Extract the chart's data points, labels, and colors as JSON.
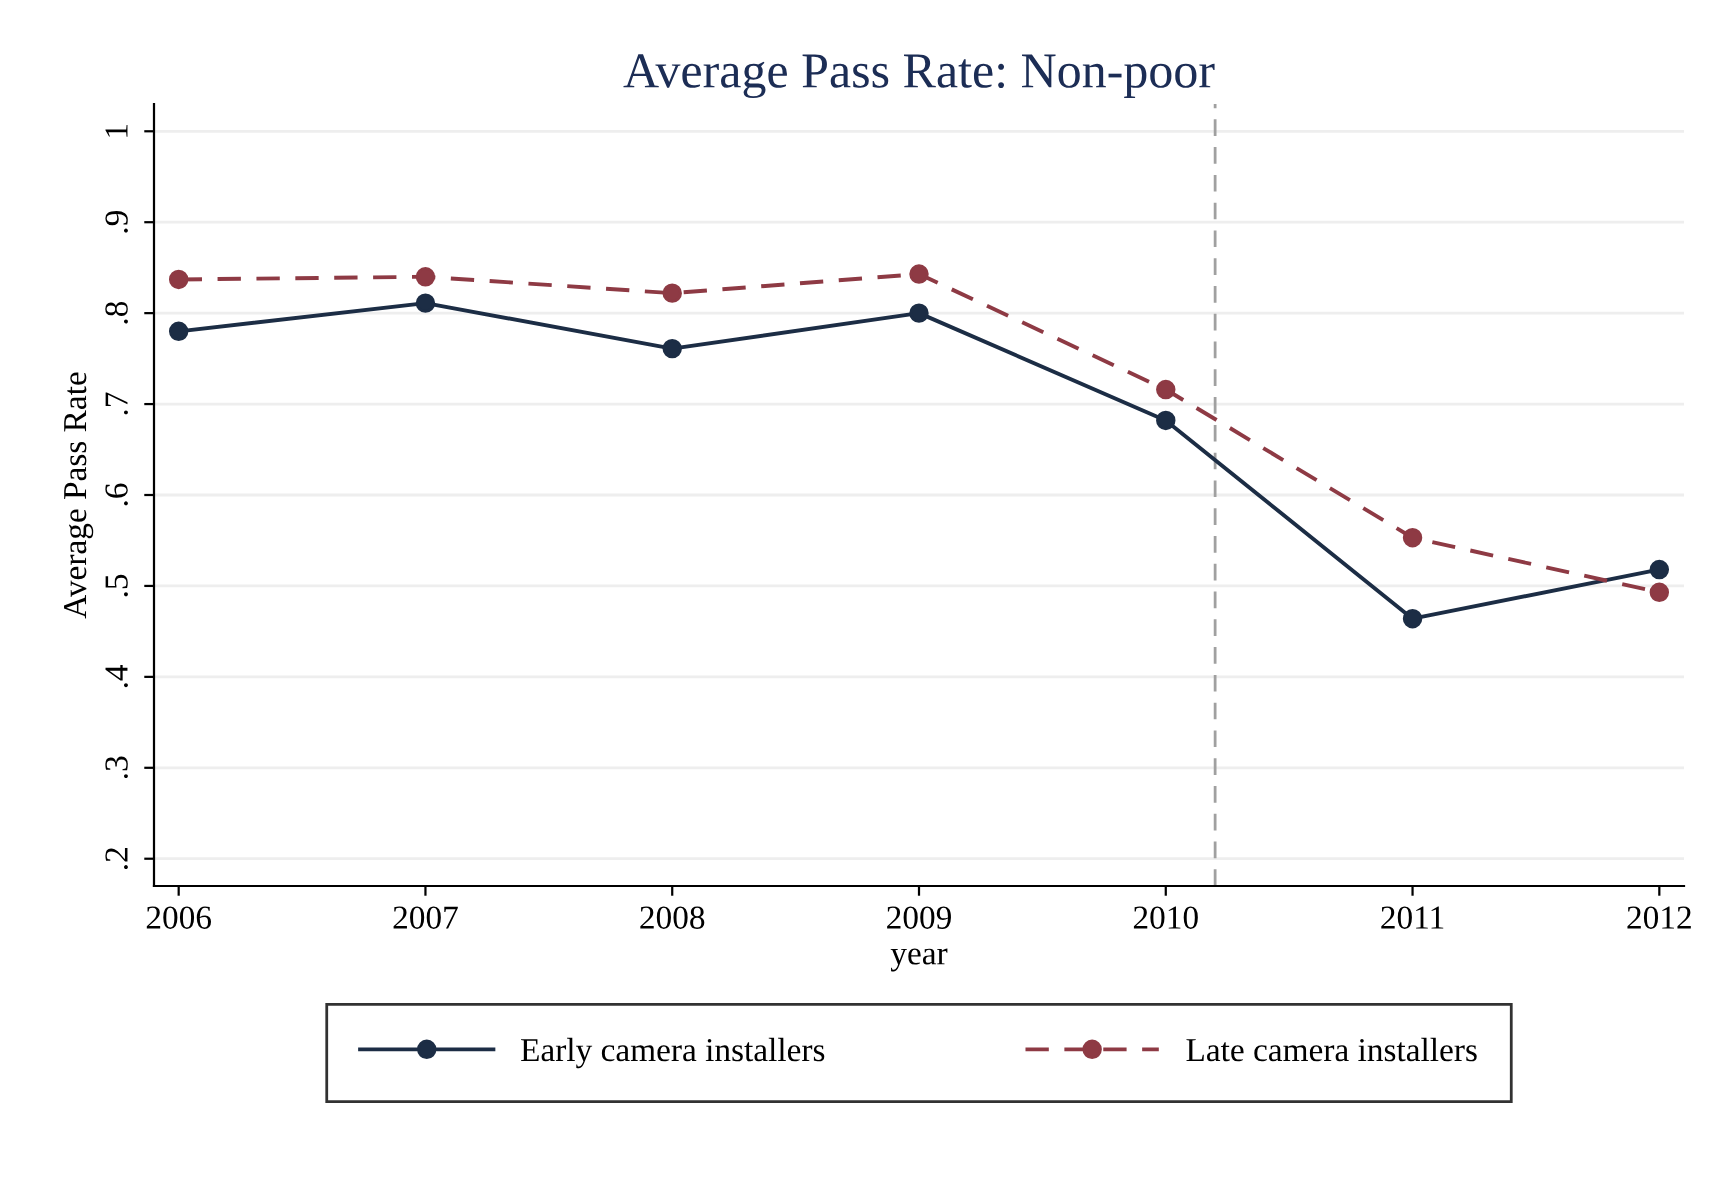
{
  "chart_data": {
    "type": "line",
    "title": "Average Pass Rate: Non-poor",
    "xlabel": "year",
    "ylabel": "Average Pass Rate",
    "x": [
      2006,
      2007,
      2008,
      2009,
      2010,
      2011,
      2012
    ],
    "series": [
      {
        "name": "Early camera installers",
        "color": "#1c2d45",
        "line_style": "solid",
        "values": [
          0.78,
          0.811,
          0.761,
          0.8,
          0.682,
          0.464,
          0.518
        ]
      },
      {
        "name": "Late camera installers",
        "color": "#8e3a44",
        "line_style": "dashed",
        "values": [
          0.837,
          0.84,
          0.822,
          0.843,
          0.716,
          0.553,
          0.493
        ]
      }
    ],
    "marker": "circle",
    "xlim": [
      2005.9,
      2012.1
    ],
    "ylim": [
      0.17,
      1.03
    ],
    "xticks": [
      2006,
      2007,
      2008,
      2009,
      2010,
      2011,
      2012
    ],
    "yticks": [
      {
        "value": 0.2,
        "label": ".2"
      },
      {
        "value": 0.3,
        "label": ".3"
      },
      {
        "value": 0.4,
        "label": ".4"
      },
      {
        "value": 0.5,
        "label": ".5"
      },
      {
        "value": 0.6,
        "label": ".6"
      },
      {
        "value": 0.7,
        "label": ".7"
      },
      {
        "value": 0.8,
        "label": ".8"
      },
      {
        "value": 0.9,
        "label": ".9"
      },
      {
        "value": 1,
        "label": "1"
      }
    ],
    "ref_lines": [
      {
        "axis": "x",
        "value": 2010.2,
        "color": "#a0a0a0",
        "line_style": "dashed"
      }
    ],
    "grid": "y",
    "legend": "bottom"
  }
}
